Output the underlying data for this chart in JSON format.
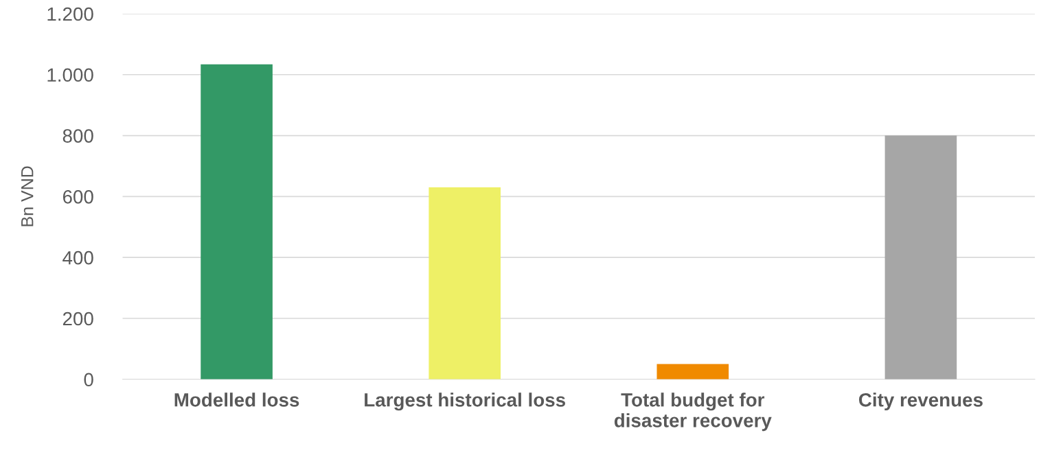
{
  "chart_data": {
    "type": "bar",
    "ylabel": "Bn VND",
    "categories": [
      "Modelled loss",
      "Largest historical loss",
      "Total budget for\ndisaster recovery",
      "City revenues"
    ],
    "values": [
      1034,
      630,
      50,
      800
    ],
    "colors": [
      "#339966",
      "#eef066",
      "#f08a00",
      "#a6a6a6"
    ],
    "ylim": [
      0,
      1200
    ],
    "yticks": [
      0,
      200,
      400,
      600,
      800,
      {
        "value": 1000,
        "label": "1.000"
      },
      {
        "value": 1200,
        "label": "1.200"
      }
    ],
    "grid": "y",
    "legend": false
  }
}
